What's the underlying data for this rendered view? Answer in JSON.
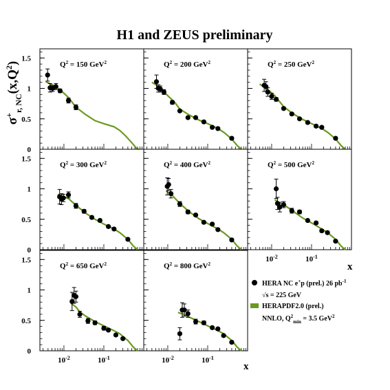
{
  "title": "H1 and ZEUS preliminary",
  "ylabel": {
    "main": "σ",
    "sup": "+",
    "sub": "r, NC",
    "tail": "(x,Q",
    "tail_sup": "2",
    "tail_end": ")"
  },
  "xlabel": "x",
  "legend": {
    "data_label": "HERA NC e",
    "data_label_sup": "+",
    "data_label_mid": "p (prel.) 26 pb",
    "data_label_sup2": "-1",
    "sqrt_s": "√s = 225 GeV",
    "fit_label": "HERAPDF2.0 (prel.)",
    "fit_detail": "NNLO, Q",
    "fit_detail_sup": "2",
    "fit_detail_sub": "min",
    "fit_detail_end": " = 3.5 GeV",
    "fit_detail_sup2": "2"
  },
  "colors": {
    "curve": "#6a9a1f",
    "points": "#000000",
    "frame": "#000000"
  },
  "chart_data": {
    "type": "scatter",
    "xscale": "log",
    "xlim": [
      0.0025,
      1
    ],
    "ylim": [
      0,
      1.65
    ],
    "yticks": [
      "0",
      "0.5",
      "1",
      "1.5"
    ],
    "xticks": [
      {
        "base": "10",
        "exp": "-2"
      },
      {
        "base": "10",
        "exp": "-1"
      }
    ],
    "panels": [
      {
        "label": "Q",
        "label_sup": "2",
        "label_rest": " = 150 GeV",
        "label_sup2": "2",
        "points": [
          [
            0.0039,
            1.22,
            0.1
          ],
          [
            0.0045,
            1.01,
            0.07
          ],
          [
            0.0052,
            1.0,
            0.05
          ],
          [
            0.0063,
            1.03,
            0.05
          ],
          [
            0.008,
            0.96,
            0.03
          ],
          [
            0.013,
            0.8,
            0.04
          ],
          [
            0.02,
            0.69,
            0.04
          ]
        ],
        "curve": [
          [
            0.0035,
            1.11
          ],
          [
            0.005,
            1.06
          ],
          [
            0.008,
            0.98
          ],
          [
            0.013,
            0.85
          ],
          [
            0.02,
            0.69
          ],
          [
            0.035,
            0.57
          ],
          [
            0.06,
            0.47
          ],
          [
            0.1,
            0.42
          ],
          [
            0.18,
            0.37
          ],
          [
            0.25,
            0.31
          ],
          [
            0.35,
            0.22
          ],
          [
            0.5,
            0.11
          ],
          [
            0.65,
            0.02
          ],
          [
            0.75,
            0.0
          ]
        ]
      },
      {
        "label": "Q",
        "label_sup": "2",
        "label_rest": " = 200 GeV",
        "label_sup2": "2",
        "points": [
          [
            0.0052,
            1.11,
            0.11
          ],
          [
            0.0058,
            1.0,
            0.06
          ],
          [
            0.0065,
            0.99,
            0.05
          ],
          [
            0.008,
            0.94,
            0.04
          ],
          [
            0.013,
            0.77,
            0.03
          ],
          [
            0.02,
            0.63,
            0.02
          ],
          [
            0.032,
            0.52,
            0.02
          ],
          [
            0.05,
            0.52,
            0.02
          ],
          [
            0.08,
            0.45,
            0.02
          ],
          [
            0.13,
            0.36,
            0.02
          ],
          [
            0.18,
            0.34,
            0.02
          ],
          [
            0.4,
            0.18,
            0.02
          ]
        ],
        "curve": [
          [
            0.004,
            1.1
          ],
          [
            0.006,
            1.03
          ],
          [
            0.01,
            0.88
          ],
          [
            0.015,
            0.77
          ],
          [
            0.02,
            0.66
          ],
          [
            0.035,
            0.56
          ],
          [
            0.06,
            0.48
          ],
          [
            0.1,
            0.42
          ],
          [
            0.18,
            0.34
          ],
          [
            0.25,
            0.28
          ],
          [
            0.4,
            0.17
          ],
          [
            0.55,
            0.06
          ],
          [
            0.7,
            0.0
          ]
        ]
      },
      {
        "label": "Q",
        "label_sup": "2",
        "label_rest": " = 250 GeV",
        "label_sup2": "2",
        "points": [
          [
            0.0065,
            1.05,
            0.1
          ],
          [
            0.0072,
            1.03,
            0.08
          ],
          [
            0.008,
            0.94,
            0.07
          ],
          [
            0.01,
            0.87,
            0.05
          ],
          [
            0.013,
            0.82,
            0.03
          ],
          [
            0.02,
            0.67,
            0.02
          ],
          [
            0.032,
            0.58,
            0.02
          ],
          [
            0.05,
            0.5,
            0.02
          ],
          [
            0.08,
            0.44,
            0.02
          ],
          [
            0.13,
            0.38,
            0.02
          ],
          [
            0.18,
            0.36,
            0.02
          ],
          [
            0.4,
            0.18,
            0.02
          ]
        ],
        "curve": [
          [
            0.005,
            1.07
          ],
          [
            0.008,
            0.98
          ],
          [
            0.012,
            0.88
          ],
          [
            0.02,
            0.7
          ],
          [
            0.035,
            0.58
          ],
          [
            0.06,
            0.49
          ],
          [
            0.1,
            0.42
          ],
          [
            0.18,
            0.34
          ],
          [
            0.25,
            0.28
          ],
          [
            0.4,
            0.17
          ],
          [
            0.55,
            0.06
          ],
          [
            0.7,
            0.0
          ]
        ]
      },
      {
        "label": "Q",
        "label_sup": "2",
        "label_rest": " = 300 GeV",
        "label_sup2": "2",
        "points": [
          [
            0.0078,
            0.87,
            0.12
          ],
          [
            0.0087,
            0.83,
            0.09
          ],
          [
            0.0097,
            0.85,
            0.06
          ],
          [
            0.013,
            0.9,
            0.05
          ],
          [
            0.02,
            0.72,
            0.04
          ],
          [
            0.032,
            0.63,
            0.03
          ],
          [
            0.05,
            0.53,
            0.02
          ],
          [
            0.08,
            0.48,
            0.02
          ],
          [
            0.13,
            0.38,
            0.02
          ],
          [
            0.18,
            0.34,
            0.02
          ],
          [
            0.4,
            0.17,
            0.02
          ]
        ],
        "curve": [
          [
            0.007,
            0.91
          ],
          [
            0.01,
            0.87
          ],
          [
            0.013,
            0.84
          ],
          [
            0.02,
            0.73
          ],
          [
            0.035,
            0.6
          ],
          [
            0.06,
            0.5
          ],
          [
            0.1,
            0.42
          ],
          [
            0.18,
            0.34
          ],
          [
            0.25,
            0.28
          ],
          [
            0.4,
            0.17
          ],
          [
            0.55,
            0.06
          ],
          [
            0.7,
            0.0
          ]
        ]
      },
      {
        "label": "Q",
        "label_sup": "2",
        "label_rest": " = 400 GeV",
        "label_sup2": "2",
        "points": [
          [
            0.0097,
            1.04,
            0.14
          ],
          [
            0.0105,
            1.07,
            0.1
          ],
          [
            0.012,
            0.92,
            0.07
          ],
          [
            0.02,
            0.75,
            0.04
          ],
          [
            0.032,
            0.62,
            0.03
          ],
          [
            0.05,
            0.57,
            0.02
          ],
          [
            0.08,
            0.45,
            0.02
          ],
          [
            0.13,
            0.42,
            0.02
          ],
          [
            0.18,
            0.33,
            0.02
          ],
          [
            0.4,
            0.16,
            0.02
          ]
        ],
        "curve": [
          [
            0.009,
            0.97
          ],
          [
            0.013,
            0.89
          ],
          [
            0.02,
            0.76
          ],
          [
            0.035,
            0.62
          ],
          [
            0.06,
            0.51
          ],
          [
            0.1,
            0.43
          ],
          [
            0.18,
            0.34
          ],
          [
            0.25,
            0.28
          ],
          [
            0.4,
            0.17
          ],
          [
            0.55,
            0.06
          ],
          [
            0.7,
            0.0
          ]
        ]
      },
      {
        "label": "Q",
        "label_sup": "2",
        "label_rest": " = 500 GeV",
        "label_sup2": "2",
        "points": [
          [
            0.013,
            1.0,
            0.16
          ],
          [
            0.014,
            0.76,
            0.1
          ],
          [
            0.016,
            0.7,
            0.08
          ],
          [
            0.02,
            0.74,
            0.05
          ],
          [
            0.032,
            0.64,
            0.04
          ],
          [
            0.05,
            0.62,
            0.03
          ],
          [
            0.08,
            0.48,
            0.02
          ],
          [
            0.13,
            0.44,
            0.02
          ],
          [
            0.18,
            0.31,
            0.02
          ],
          [
            0.25,
            0.28,
            0.02
          ],
          [
            0.4,
            0.14,
            0.02
          ]
        ],
        "curve": [
          [
            0.012,
            0.82
          ],
          [
            0.016,
            0.76
          ],
          [
            0.02,
            0.74
          ],
          [
            0.035,
            0.63
          ],
          [
            0.06,
            0.52
          ],
          [
            0.1,
            0.44
          ],
          [
            0.18,
            0.34
          ],
          [
            0.25,
            0.28
          ],
          [
            0.4,
            0.17
          ],
          [
            0.55,
            0.06
          ],
          [
            0.7,
            0.0
          ]
        ]
      },
      {
        "label": "Q",
        "label_sup": "2",
        "label_rest": " = 650 GeV",
        "label_sup2": "2",
        "points": [
          [
            0.016,
            0.81,
            0.15
          ],
          [
            0.018,
            0.91,
            0.13
          ],
          [
            0.02,
            0.89,
            0.09
          ],
          [
            0.025,
            0.6,
            0.05
          ],
          [
            0.04,
            0.49,
            0.04
          ],
          [
            0.06,
            0.46,
            0.03
          ],
          [
            0.1,
            0.37,
            0.03
          ],
          [
            0.13,
            0.34,
            0.02
          ],
          [
            0.2,
            0.26,
            0.02
          ],
          [
            0.3,
            0.2,
            0.02
          ]
        ],
        "curve": [
          [
            0.015,
            0.78
          ],
          [
            0.02,
            0.72
          ],
          [
            0.025,
            0.64
          ],
          [
            0.035,
            0.57
          ],
          [
            0.06,
            0.48
          ],
          [
            0.1,
            0.41
          ],
          [
            0.18,
            0.33
          ],
          [
            0.25,
            0.28
          ],
          [
            0.4,
            0.17
          ],
          [
            0.55,
            0.06
          ],
          [
            0.7,
            0.0
          ]
        ]
      },
      {
        "label": "Q",
        "label_sup": "2",
        "label_rest": " = 800 GeV",
        "label_sup2": "2",
        "points": [
          [
            0.02,
            0.28,
            0.1
          ],
          [
            0.023,
            0.67,
            0.12
          ],
          [
            0.026,
            0.67,
            0.1
          ],
          [
            0.032,
            0.61,
            0.06
          ],
          [
            0.05,
            0.48,
            0.04
          ],
          [
            0.08,
            0.46,
            0.03
          ],
          [
            0.13,
            0.38,
            0.02
          ],
          [
            0.18,
            0.36,
            0.02
          ],
          [
            0.25,
            0.25,
            0.02
          ],
          [
            0.4,
            0.14,
            0.02
          ]
        ],
        "curve": [
          [
            0.018,
            0.63
          ],
          [
            0.025,
            0.6
          ],
          [
            0.035,
            0.55
          ],
          [
            0.06,
            0.48
          ],
          [
            0.1,
            0.41
          ],
          [
            0.18,
            0.33
          ],
          [
            0.25,
            0.28
          ],
          [
            0.4,
            0.17
          ],
          [
            0.55,
            0.06
          ],
          [
            0.7,
            0.0
          ]
        ]
      }
    ]
  }
}
